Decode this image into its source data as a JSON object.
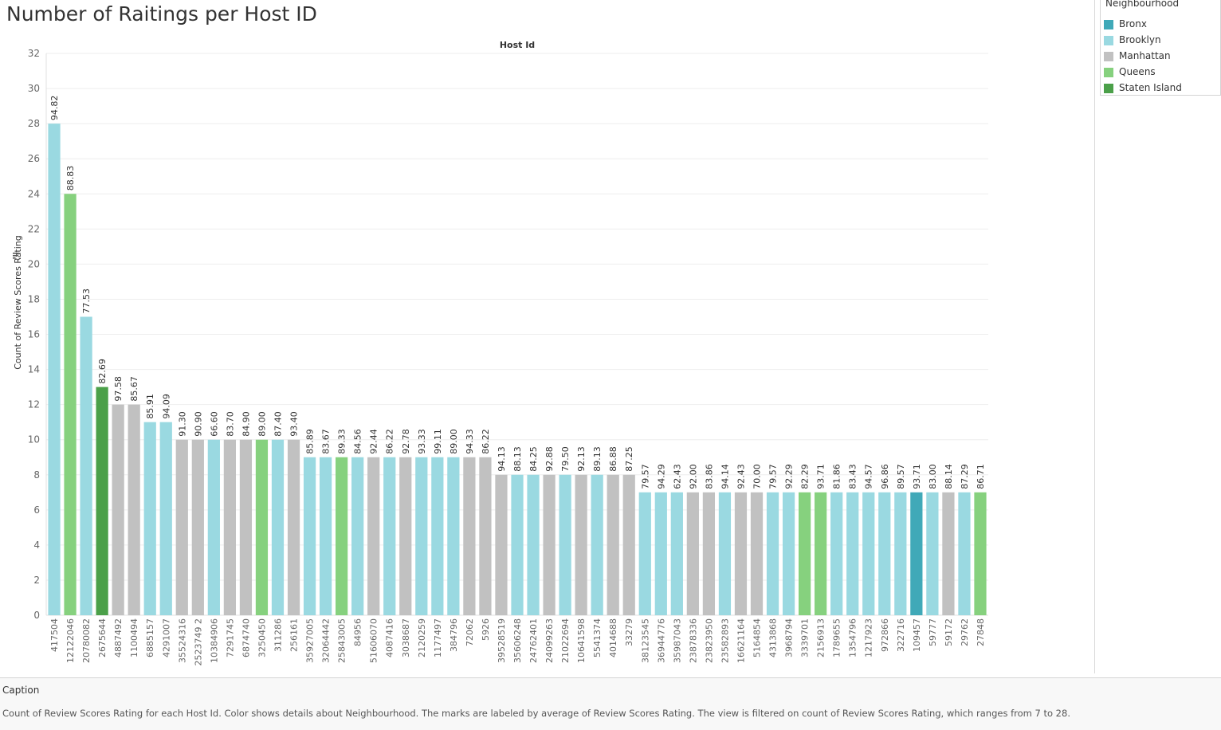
{
  "title": "Number of Raitings per Host ID",
  "legend": {
    "title": "Neighbourhood",
    "items": [
      {
        "label": "Bronx",
        "color": "#40a9b8"
      },
      {
        "label": "Brooklyn",
        "color": "#9ad9e1"
      },
      {
        "label": "Manhattan",
        "color": "#c1c1c1"
      },
      {
        "label": "Queens",
        "color": "#86d17e"
      },
      {
        "label": "Staten Island",
        "color": "#4ba049"
      }
    ]
  },
  "caption": {
    "title": "Caption",
    "text": "Count of Review Scores Rating for each Host Id.  Color shows details about Neighbourhood.  The marks are labeled by average of Review Scores Rating. The view is filtered on count of Review Scores Rating, which ranges from 7 to 28."
  },
  "chart_data": {
    "type": "bar",
    "title": "Number of Raitings per Host ID",
    "xlabel": "Host Id",
    "ylabel": "Count of Review Scores Rating",
    "ylim": [
      0,
      32
    ],
    "yticks": [
      0,
      2,
      4,
      6,
      8,
      10,
      12,
      14,
      16,
      18,
      20,
      22,
      24,
      26,
      28,
      30,
      32
    ],
    "grid": true,
    "legend_position": "top-right",
    "categories": [
      "417504",
      "12122046",
      "20780082",
      "2675644",
      "4887492",
      "1100494",
      "6885157",
      "4291007",
      "35524316",
      "2523749 2",
      "10384906",
      "7291745",
      "6874740",
      "3250450",
      "311286",
      "256161",
      "35927005",
      "32064442",
      "25843005",
      "84956",
      "51606070",
      "4087416",
      "3038687",
      "2120259",
      "1177497",
      "384796",
      "72062",
      "5926",
      "39528519",
      "35606248",
      "24762401",
      "24099263",
      "21022694",
      "10641598",
      "5541374",
      "4014688",
      "33279",
      "38123545",
      "36944776",
      "35987043",
      "23878336",
      "23823950",
      "23582893",
      "16621164",
      "5164854",
      "4313868",
      "3968794",
      "3339701",
      "2156913",
      "1789655",
      "1354796",
      "1217923",
      "972866",
      "322716",
      "109457",
      "59777",
      "59172",
      "29762",
      "27848"
    ],
    "values": [
      28,
      24,
      17,
      13,
      12,
      12,
      11,
      11,
      10,
      10,
      10,
      10,
      10,
      10,
      10,
      10,
      9,
      9,
      9,
      9,
      9,
      9,
      9,
      9,
      9,
      9,
      9,
      9,
      8,
      8,
      8,
      8,
      8,
      8,
      8,
      8,
      8,
      7,
      7,
      7,
      7,
      7,
      7,
      7,
      7,
      7,
      7,
      7,
      7,
      7,
      7,
      7,
      7,
      7,
      7,
      7,
      7,
      7,
      7
    ],
    "labels": [
      "94.82",
      "88.83",
      "77.53",
      "82.69",
      "97.58",
      "85.67",
      "85.91",
      "94.09",
      "91.30",
      "90.90",
      "66.60",
      "83.70",
      "84.90",
      "89.00",
      "87.40",
      "93.40",
      "85.89",
      "83.67",
      "89.33",
      "84.56",
      "92.44",
      "86.22",
      "92.78",
      "93.33",
      "99.11",
      "89.00",
      "94.33",
      "86.22",
      "94.13",
      "88.13",
      "84.25",
      "92.88",
      "79.50",
      "92.13",
      "89.13",
      "86.88",
      "87.25",
      "79.57",
      "94.29",
      "62.43",
      "92.00",
      "83.86",
      "94.14",
      "92.43",
      "70.00",
      "79.57",
      "92.29",
      "82.29",
      "93.71",
      "81.86",
      "83.43",
      "94.57",
      "96.86",
      "89.57",
      "93.71",
      "83.00",
      "88.14",
      "87.29",
      "86.71"
    ],
    "neighbourhood": [
      "Brooklyn",
      "Queens",
      "Brooklyn",
      "Staten Island",
      "Manhattan",
      "Manhattan",
      "Brooklyn",
      "Brooklyn",
      "Manhattan",
      "Manhattan",
      "Brooklyn",
      "Manhattan",
      "Manhattan",
      "Queens",
      "Brooklyn",
      "Manhattan",
      "Brooklyn",
      "Brooklyn",
      "Queens",
      "Brooklyn",
      "Manhattan",
      "Brooklyn",
      "Manhattan",
      "Brooklyn",
      "Brooklyn",
      "Brooklyn",
      "Manhattan",
      "Manhattan",
      "Manhattan",
      "Brooklyn",
      "Brooklyn",
      "Manhattan",
      "Brooklyn",
      "Manhattan",
      "Brooklyn",
      "Manhattan",
      "Manhattan",
      "Brooklyn",
      "Brooklyn",
      "Brooklyn",
      "Manhattan",
      "Manhattan",
      "Brooklyn",
      "Manhattan",
      "Manhattan",
      "Brooklyn",
      "Brooklyn",
      "Queens",
      "Queens",
      "Brooklyn",
      "Brooklyn",
      "Brooklyn",
      "Brooklyn",
      "Brooklyn",
      "Bronx",
      "Brooklyn",
      "Manhattan",
      "Brooklyn",
      "Queens"
    ]
  }
}
